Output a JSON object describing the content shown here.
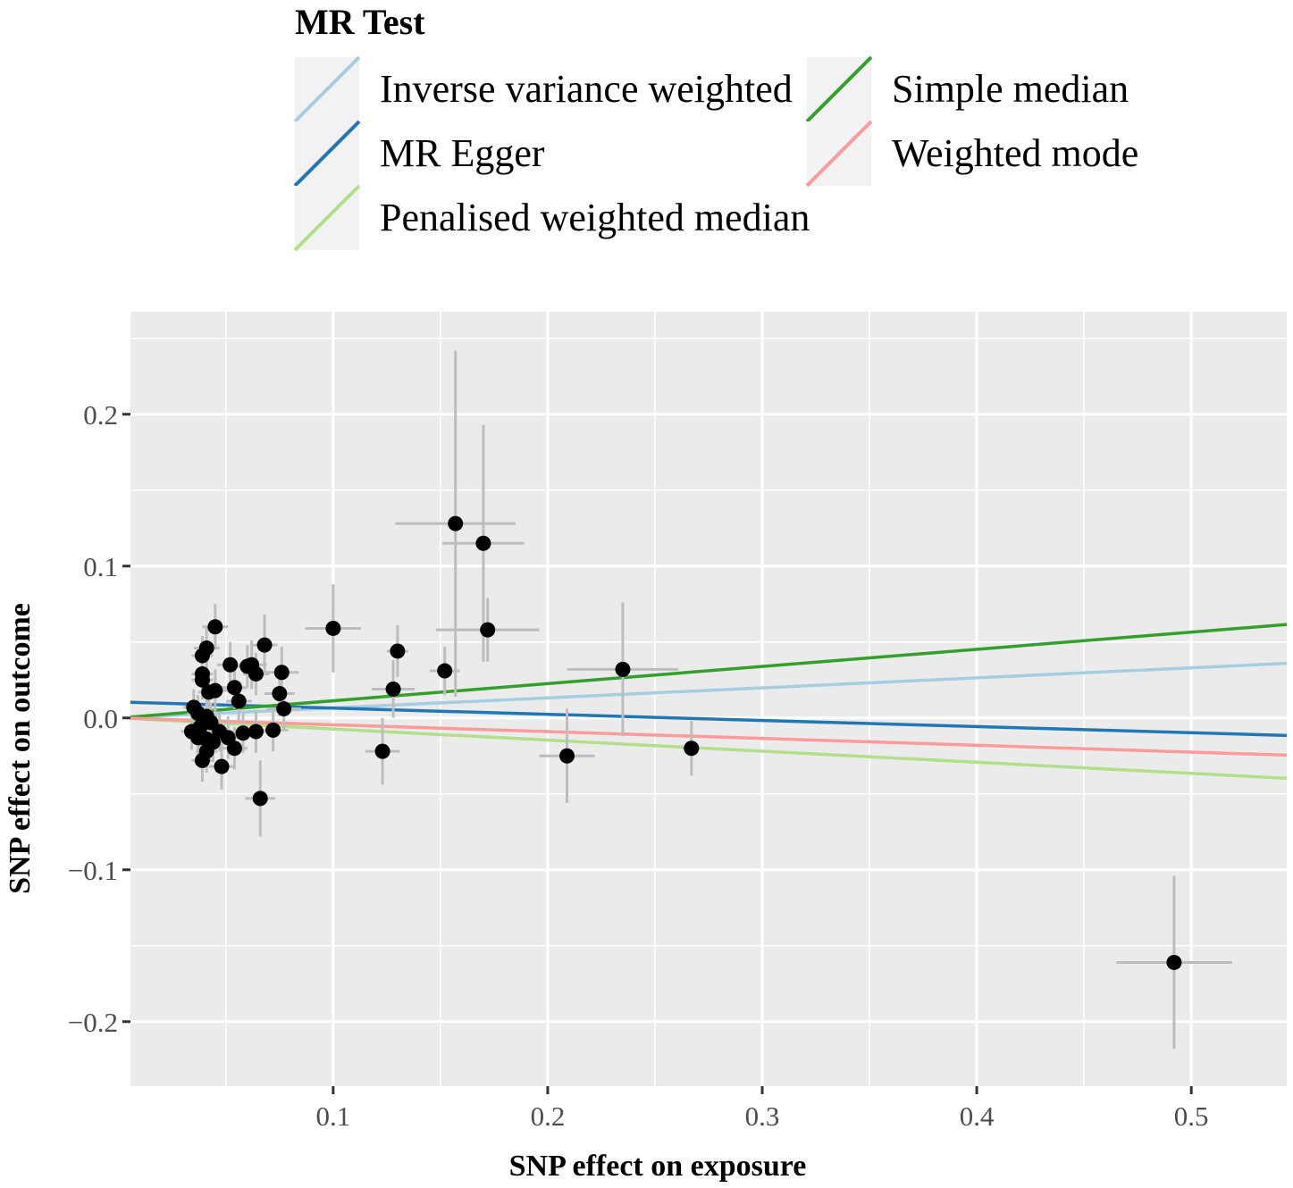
{
  "chart_data": {
    "type": "scatter",
    "title": "",
    "xlabel": "SNP effect on exposure",
    "ylabel": "SNP effect on outcome",
    "xlim": [
      0.0055,
      0.5445
    ],
    "ylim": [
      -0.2425,
      0.2675
    ],
    "x_ticks": [
      0.1,
      0.2,
      0.3,
      0.4,
      0.5
    ],
    "x_tick_labels": [
      "0.1",
      "0.2",
      "0.3",
      "0.4",
      "0.5"
    ],
    "y_ticks": [
      -0.2,
      -0.1,
      0.0,
      0.1,
      0.2
    ],
    "y_tick_labels": [
      "−0.2",
      "−0.1",
      "0.0",
      "0.1",
      "0.2"
    ],
    "grid": true,
    "legend": {
      "title": "MR Test",
      "position": "top",
      "entries": [
        {
          "label": "Inverse variance weighted",
          "color": "#a6cee3"
        },
        {
          "label": "MR Egger",
          "color": "#1f78b4"
        },
        {
          "label": "Penalised weighted median",
          "color": "#b2df8a"
        },
        {
          "label": "Simple median",
          "color": "#33a02c"
        },
        {
          "label": "Weighted mode",
          "color": "#fb9a99"
        }
      ]
    },
    "lines": [
      {
        "name": "Inverse variance weighted",
        "color": "#a6cee3",
        "intercept": 0,
        "slope": 0.066
      },
      {
        "name": "MR Egger",
        "color": "#1f78b4",
        "intercept": 0.0105,
        "slope": -0.0405
      },
      {
        "name": "Penalised weighted median",
        "color": "#b2df8a",
        "intercept": 0,
        "slope": -0.073
      },
      {
        "name": "Simple median",
        "color": "#33a02c",
        "intercept": 0,
        "slope": 0.113
      },
      {
        "name": "Weighted mode",
        "color": "#fb9a99",
        "intercept": 0,
        "slope": -0.045
      }
    ],
    "points": [
      {
        "x": 0.157,
        "y": 0.128,
        "xerr": 0.028,
        "yerr": 0.114
      },
      {
        "x": 0.17,
        "y": 0.115,
        "xerr": 0.019,
        "yerr": 0.078
      },
      {
        "x": 0.172,
        "y": 0.058,
        "xerr": 0.024,
        "yerr": 0.021
      },
      {
        "x": 0.1,
        "y": 0.059,
        "xerr": 0.013,
        "yerr": 0.029
      },
      {
        "x": 0.13,
        "y": 0.044,
        "xerr": 0.005,
        "yerr": 0.017
      },
      {
        "x": 0.128,
        "y": 0.019,
        "xerr": 0.01,
        "yerr": 0.019
      },
      {
        "x": 0.152,
        "y": 0.031,
        "xerr": 0.007,
        "yerr": 0.016
      },
      {
        "x": 0.235,
        "y": 0.032,
        "xerr": 0.026,
        "yerr": 0.044
      },
      {
        "x": 0.123,
        "y": -0.022,
        "xerr": 0.008,
        "yerr": 0.022
      },
      {
        "x": 0.209,
        "y": -0.025,
        "xerr": 0.013,
        "yerr": 0.031
      },
      {
        "x": 0.267,
        "y": -0.02,
        "xerr": 0.004,
        "yerr": 0.018
      },
      {
        "x": 0.492,
        "y": -0.161,
        "xerr": 0.027,
        "yerr": 0.057
      },
      {
        "x": 0.066,
        "y": -0.053,
        "xerr": 0.007,
        "yerr": 0.025
      },
      {
        "x": 0.045,
        "y": 0.06,
        "xerr": 0.006,
        "yerr": 0.015
      },
      {
        "x": 0.041,
        "y": 0.046,
        "xerr": 0.006,
        "yerr": 0.014
      },
      {
        "x": 0.039,
        "y": 0.041,
        "xerr": 0.005,
        "yerr": 0.013
      },
      {
        "x": 0.068,
        "y": 0.048,
        "xerr": 0.006,
        "yerr": 0.02
      },
      {
        "x": 0.052,
        "y": 0.035,
        "xerr": 0.006,
        "yerr": 0.015
      },
      {
        "x": 0.039,
        "y": 0.029,
        "xerr": 0.005,
        "yerr": 0.014
      },
      {
        "x": 0.062,
        "y": 0.035,
        "xerr": 0.007,
        "yerr": 0.016
      },
      {
        "x": 0.06,
        "y": 0.034,
        "xerr": 0.006,
        "yerr": 0.014
      },
      {
        "x": 0.064,
        "y": 0.029,
        "xerr": 0.006,
        "yerr": 0.014
      },
      {
        "x": 0.076,
        "y": 0.03,
        "xerr": 0.008,
        "yerr": 0.017
      },
      {
        "x": 0.039,
        "y": 0.025,
        "xerr": 0.005,
        "yerr": 0.013
      },
      {
        "x": 0.054,
        "y": 0.02,
        "xerr": 0.006,
        "yerr": 0.014
      },
      {
        "x": 0.045,
        "y": 0.018,
        "xerr": 0.006,
        "yerr": 0.014
      },
      {
        "x": 0.042,
        "y": 0.017,
        "xerr": 0.005,
        "yerr": 0.014
      },
      {
        "x": 0.075,
        "y": 0.016,
        "xerr": 0.007,
        "yerr": 0.015
      },
      {
        "x": 0.056,
        "y": 0.011,
        "xerr": 0.006,
        "yerr": 0.013
      },
      {
        "x": 0.077,
        "y": 0.006,
        "xerr": 0.008,
        "yerr": 0.014
      },
      {
        "x": 0.035,
        "y": 0.007,
        "xerr": 0.005,
        "yerr": 0.012
      },
      {
        "x": 0.037,
        "y": 0.003,
        "xerr": 0.005,
        "yerr": 0.012
      },
      {
        "x": 0.041,
        "y": 0.001,
        "xerr": 0.005,
        "yerr": 0.013
      },
      {
        "x": 0.043,
        "y": -0.003,
        "xerr": 0.005,
        "yerr": 0.013
      },
      {
        "x": 0.038,
        "y": -0.006,
        "xerr": 0.005,
        "yerr": 0.013
      },
      {
        "x": 0.034,
        "y": -0.009,
        "xerr": 0.005,
        "yerr": 0.012
      },
      {
        "x": 0.047,
        "y": -0.009,
        "xerr": 0.006,
        "yerr": 0.013
      },
      {
        "x": 0.058,
        "y": -0.01,
        "xerr": 0.006,
        "yerr": 0.013
      },
      {
        "x": 0.064,
        "y": -0.009,
        "xerr": 0.006,
        "yerr": 0.014
      },
      {
        "x": 0.072,
        "y": -0.008,
        "xerr": 0.007,
        "yerr": 0.014
      },
      {
        "x": 0.037,
        "y": -0.013,
        "xerr": 0.005,
        "yerr": 0.013
      },
      {
        "x": 0.041,
        "y": -0.014,
        "xerr": 0.005,
        "yerr": 0.014
      },
      {
        "x": 0.051,
        "y": -0.013,
        "xerr": 0.006,
        "yerr": 0.014
      },
      {
        "x": 0.044,
        "y": -0.016,
        "xerr": 0.005,
        "yerr": 0.013
      },
      {
        "x": 0.054,
        "y": -0.02,
        "xerr": 0.006,
        "yerr": 0.014
      },
      {
        "x": 0.041,
        "y": -0.022,
        "xerr": 0.005,
        "yerr": 0.014
      },
      {
        "x": 0.039,
        "y": -0.028,
        "xerr": 0.005,
        "yerr": 0.014
      },
      {
        "x": 0.048,
        "y": -0.032,
        "xerr": 0.006,
        "yerr": 0.015
      }
    ]
  }
}
